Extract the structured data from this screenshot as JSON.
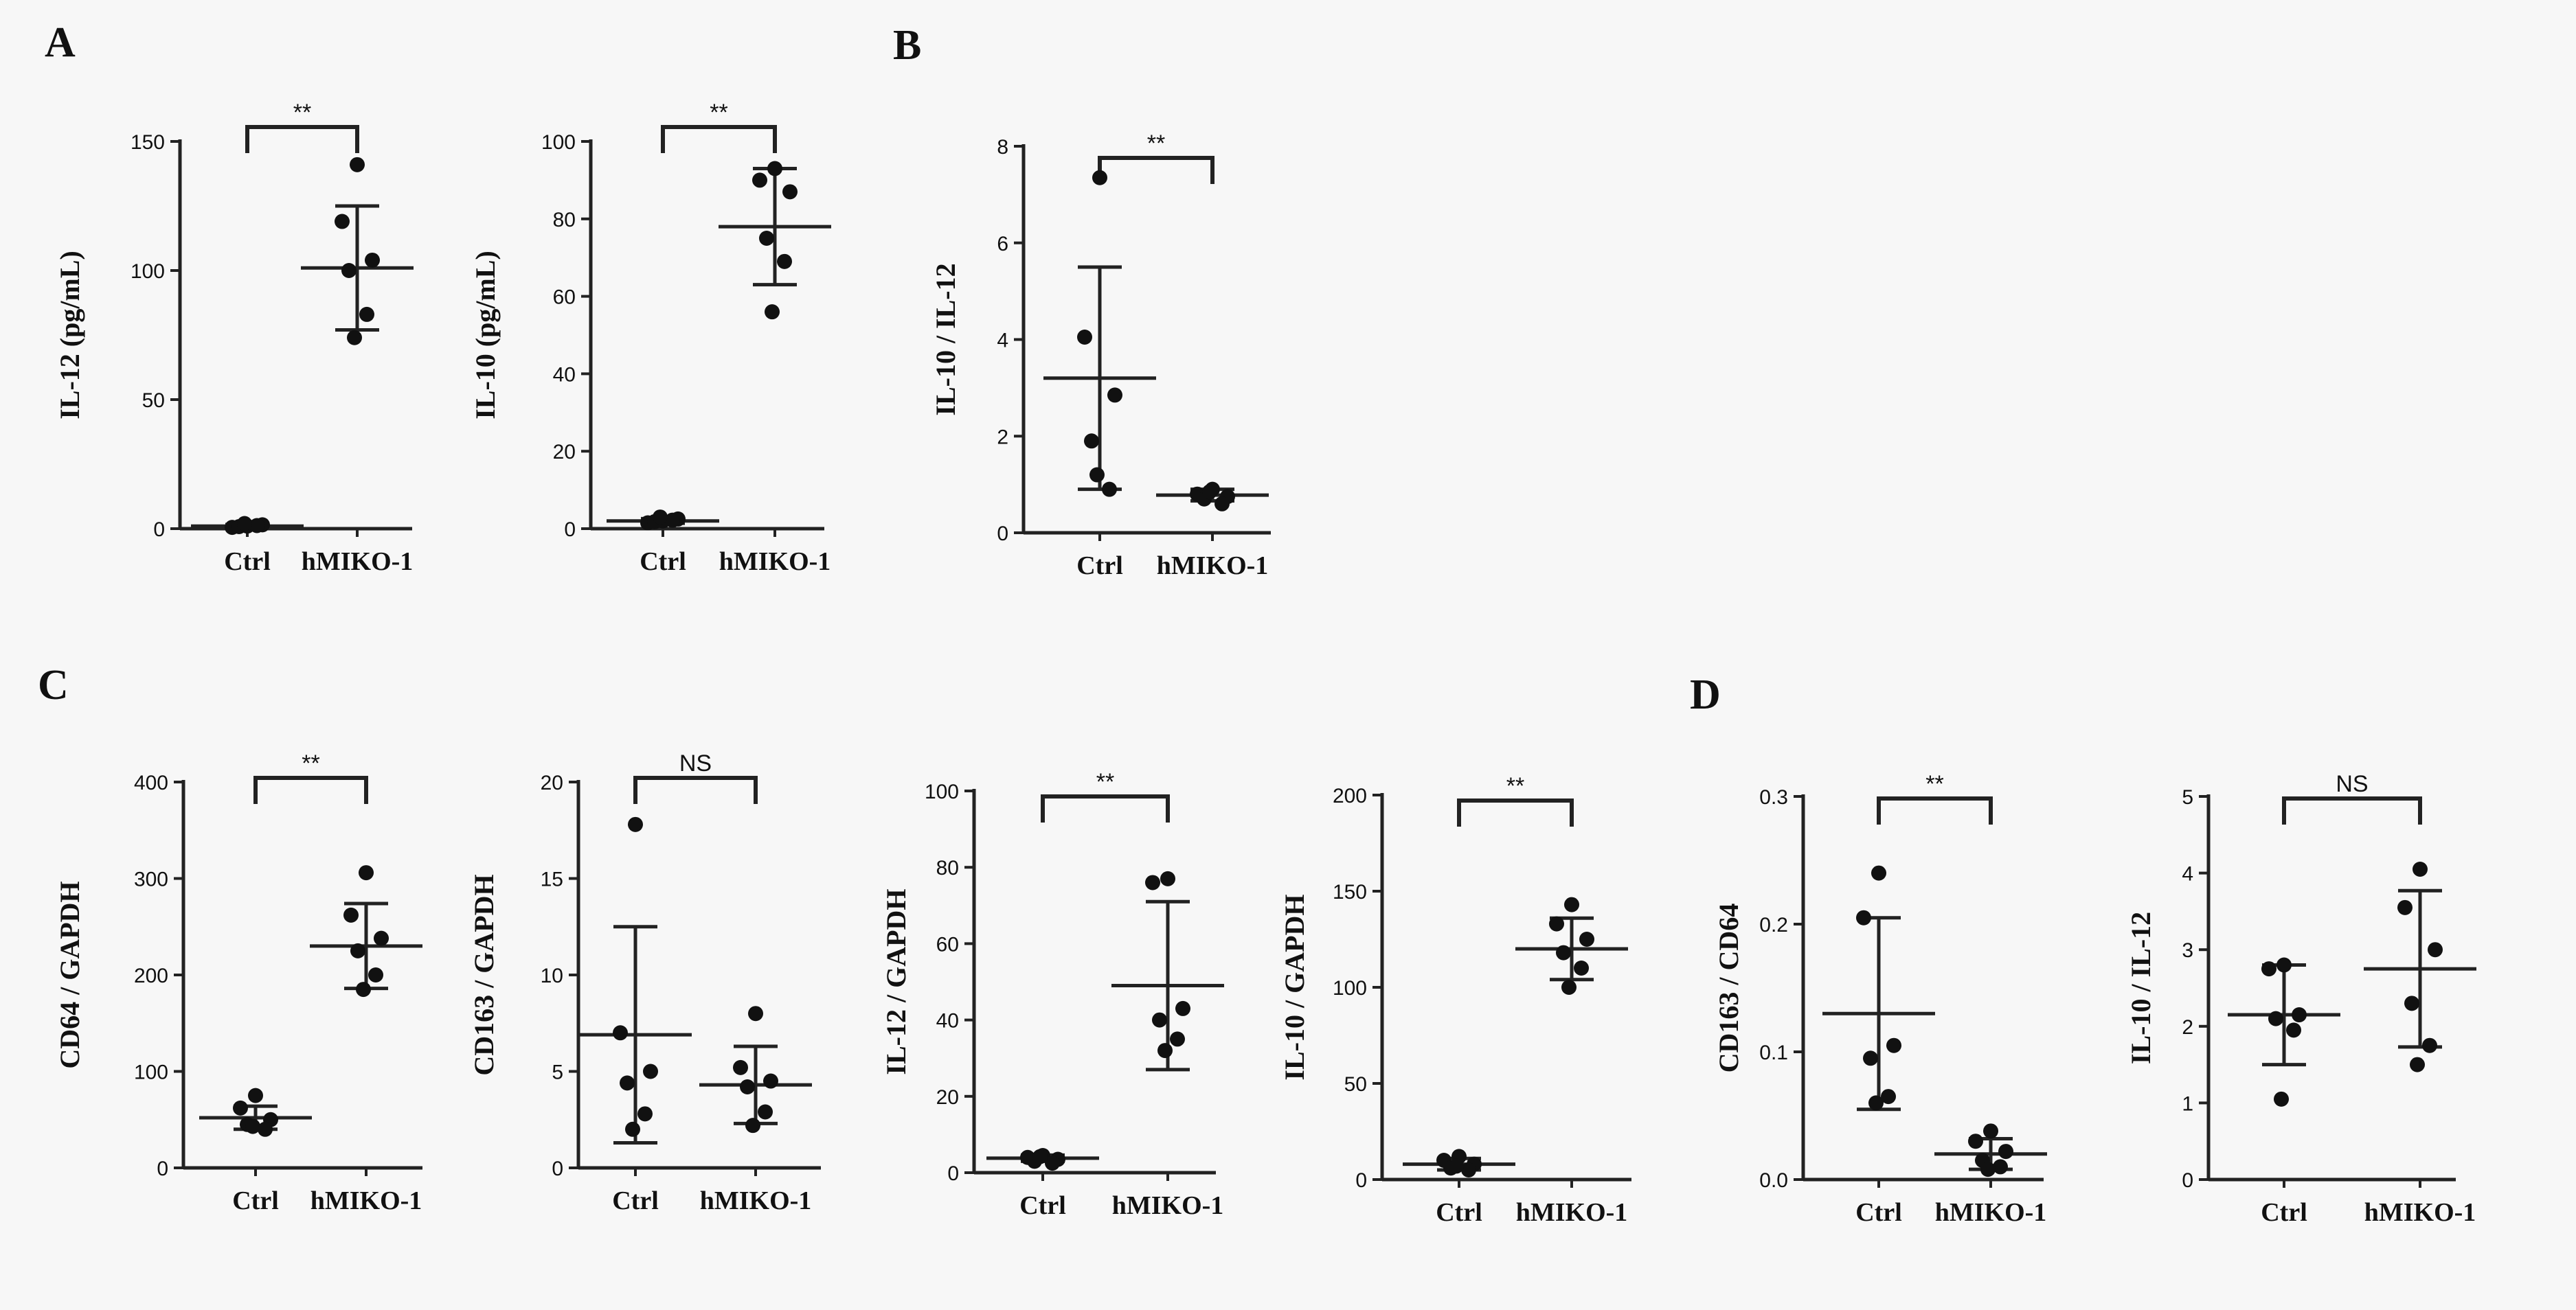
{
  "figure": {
    "panels": [
      {
        "label": "A"
      },
      {
        "label": "B"
      },
      {
        "label": "C"
      },
      {
        "label": "D"
      }
    ]
  },
  "chart_data": [
    {
      "type": "scatter",
      "panel": "A",
      "ylabel": "IL-12 (pg/mL)",
      "ylim": [
        0,
        150
      ],
      "yticks": [
        0,
        50,
        100,
        150
      ],
      "categories": [
        "Ctrl",
        "hMIKO-1"
      ],
      "significance": "**",
      "series": [
        {
          "name": "Ctrl",
          "values": [
            1,
            0.5,
            1.5,
            0.8,
            1.2,
            2
          ],
          "mean": 1,
          "sd": 0.6
        },
        {
          "name": "hMIKO-1",
          "values": [
            141,
            119,
            104,
            100,
            83,
            74
          ],
          "mean": 101,
          "sd": 24
        }
      ]
    },
    {
      "type": "scatter",
      "panel": "A",
      "ylabel": "IL-10 (pg/mL)",
      "ylim": [
        0,
        100
      ],
      "yticks": [
        0,
        20,
        40,
        60,
        80,
        100
      ],
      "categories": [
        "Ctrl",
        "hMIKO-1"
      ],
      "significance": "**",
      "series": [
        {
          "name": "Ctrl",
          "values": [
            2,
            1.5,
            2.5,
            1.8,
            2.2,
            3
          ],
          "mean": 2,
          "sd": 0.6
        },
        {
          "name": "hMIKO-1",
          "values": [
            93,
            90,
            87,
            75,
            69,
            56
          ],
          "mean": 78,
          "sd": 15
        }
      ]
    },
    {
      "type": "scatter",
      "panel": "B",
      "ylabel": "IL-10 / IL-12",
      "ylim": [
        0,
        8
      ],
      "yticks": [
        0,
        2,
        4,
        6,
        8
      ],
      "categories": [
        "Ctrl",
        "hMIKO-1"
      ],
      "significance": "**",
      "series": [
        {
          "name": "Ctrl",
          "values": [
            7.35,
            4.05,
            2.85,
            1.9,
            0.9,
            1.2
          ],
          "mean": 3.2,
          "sd": 2.3
        },
        {
          "name": "hMIKO-1",
          "values": [
            0.9,
            0.8,
            0.75,
            0.7,
            0.6,
            0.85
          ],
          "mean": 0.78,
          "sd": 0.12
        }
      ]
    },
    {
      "type": "scatter",
      "panel": "C",
      "ylabel": "CD64 / GAPDH",
      "ylim": [
        0,
        400
      ],
      "yticks": [
        0,
        100,
        200,
        300,
        400
      ],
      "categories": [
        "Ctrl",
        "hMIKO-1"
      ],
      "significance": "**",
      "series": [
        {
          "name": "Ctrl",
          "values": [
            75,
            62,
            50,
            45,
            40,
            43
          ],
          "mean": 52,
          "sd": 12
        },
        {
          "name": "hMIKO-1",
          "values": [
            306,
            262,
            238,
            225,
            200,
            185
          ],
          "mean": 230,
          "sd": 44
        }
      ]
    },
    {
      "type": "scatter",
      "panel": "C",
      "ylabel": "CD163 / GAPDH",
      "ylim": [
        0,
        20
      ],
      "yticks": [
        0,
        5,
        10,
        15,
        20
      ],
      "categories": [
        "Ctrl",
        "hMIKO-1"
      ],
      "significance": "NS",
      "series": [
        {
          "name": "Ctrl",
          "values": [
            17.8,
            7.0,
            5.0,
            4.4,
            2.8,
            2.0
          ],
          "mean": 6.9,
          "sd": 5.6
        },
        {
          "name": "hMIKO-1",
          "values": [
            8.0,
            5.2,
            4.5,
            4.2,
            2.9,
            2.2
          ],
          "mean": 4.3,
          "sd": 2.0
        }
      ]
    },
    {
      "type": "scatter",
      "panel": "C",
      "ylabel": "IL-12 / GAPDH",
      "ylim": [
        0,
        100
      ],
      "yticks": [
        0,
        20,
        40,
        60,
        80,
        100
      ],
      "categories": [
        "Ctrl",
        "hMIKO-1"
      ],
      "significance": "**",
      "series": [
        {
          "name": "Ctrl",
          "values": [
            4.5,
            4,
            3.5,
            3,
            2.5,
            4.2
          ],
          "mean": 3.8,
          "sd": 0.8
        },
        {
          "name": "hMIKO-1",
          "values": [
            77,
            76,
            43,
            40,
            35,
            32
          ],
          "mean": 49,
          "sd": 22
        }
      ]
    },
    {
      "type": "scatter",
      "panel": "C",
      "ylabel": "IL-10 / GAPDH",
      "ylim": [
        0,
        200
      ],
      "yticks": [
        0,
        50,
        100,
        150,
        200
      ],
      "categories": [
        "Ctrl",
        "hMIKO-1"
      ],
      "significance": "**",
      "series": [
        {
          "name": "Ctrl",
          "values": [
            12,
            10,
            8,
            6,
            5,
            7
          ],
          "mean": 8,
          "sd": 3
        },
        {
          "name": "hMIKO-1",
          "values": [
            143,
            133,
            125,
            118,
            110,
            100
          ],
          "mean": 120,
          "sd": 16
        }
      ]
    },
    {
      "type": "scatter",
      "panel": "D",
      "ylabel": "CD163 / CD64",
      "ylim": [
        0,
        0.3
      ],
      "yticks": [
        0,
        0.1,
        0.2,
        0.3
      ],
      "yticklabels": [
        "0.0",
        "0.1",
        "0.2",
        "0.3"
      ],
      "categories": [
        "Ctrl",
        "hMIKO-1"
      ],
      "significance": "**",
      "series": [
        {
          "name": "Ctrl",
          "values": [
            0.24,
            0.205,
            0.105,
            0.095,
            0.065,
            0.06
          ],
          "mean": 0.13,
          "sd": 0.075
        },
        {
          "name": "hMIKO-1",
          "values": [
            0.038,
            0.03,
            0.022,
            0.015,
            0.01,
            0.008
          ],
          "mean": 0.02,
          "sd": 0.012
        }
      ]
    },
    {
      "type": "scatter",
      "panel": "D",
      "ylabel": "IL-10 / IL-12",
      "ylim": [
        0,
        5
      ],
      "yticks": [
        0,
        1,
        2,
        3,
        4,
        5
      ],
      "categories": [
        "Ctrl",
        "hMIKO-1"
      ],
      "significance": "NS",
      "series": [
        {
          "name": "Ctrl",
          "values": [
            2.8,
            2.75,
            2.15,
            2.1,
            1.95,
            1.05
          ],
          "mean": 2.15,
          "sd": 0.65
        },
        {
          "name": "hMIKO-1",
          "values": [
            4.05,
            3.55,
            3.0,
            2.3,
            1.75,
            1.5
          ],
          "mean": 2.75,
          "sd": 1.02
        }
      ]
    }
  ]
}
